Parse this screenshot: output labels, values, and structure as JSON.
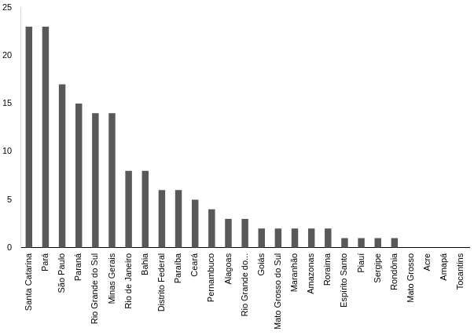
{
  "chart_data": {
    "type": "bar",
    "categories": [
      "Santa Catarina",
      "Pará",
      "São Paulo",
      "Paraná",
      "Rio Grande do Sul",
      "Minas Gerais",
      "Rio de Janeiro",
      "Bahia",
      "Distrito Federal",
      "Paraíba",
      "Ceará",
      "Pernambuco",
      "Alagoas",
      "Rio Grande do...",
      "Goiás",
      "Mato Grosso do Sul",
      "Maranhão",
      "Amazonas",
      "Roraima",
      "Espírito Santo",
      "Piauí",
      "Sergipe",
      "Rondônia",
      "Mato Grosso",
      "Acre",
      "Amapá",
      "Tocantins"
    ],
    "values": [
      23,
      23,
      17,
      15,
      14,
      14,
      8,
      8,
      6,
      6,
      5,
      4,
      3,
      3,
      2,
      2,
      2,
      2,
      2,
      1,
      1,
      1,
      1,
      0,
      0,
      0,
      0
    ],
    "color": "#595959",
    "ylim": [
      0,
      25
    ],
    "yticks": [
      0,
      5,
      10,
      15,
      20,
      25
    ],
    "grid": false
  }
}
